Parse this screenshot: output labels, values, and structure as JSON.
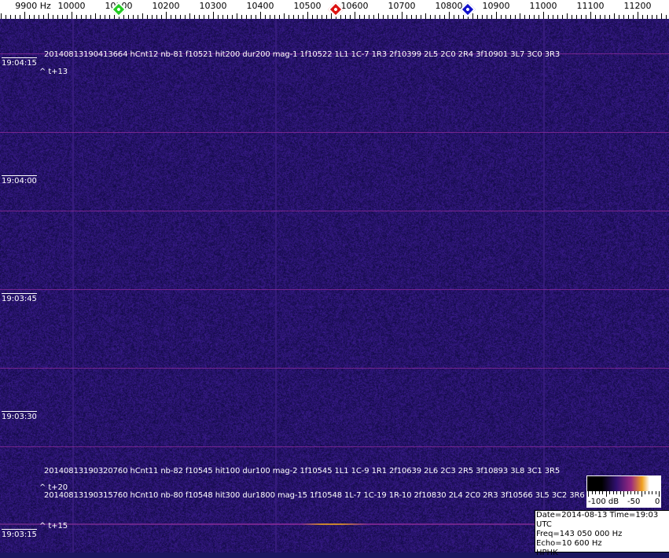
{
  "frequency_axis": {
    "unit_label": "9900 Hz",
    "labels": [
      "10000",
      "10100",
      "10200",
      "10300",
      "10400",
      "10500",
      "10600",
      "10700",
      "10800",
      "10900",
      "11000",
      "11100",
      "11200"
    ],
    "markers": [
      {
        "name": "green",
        "color": "#22cc22",
        "freq": 10100
      },
      {
        "name": "red",
        "color": "#dd1111",
        "freq": 10560
      },
      {
        "name": "blue",
        "color": "#1111cc",
        "freq": 10840
      }
    ]
  },
  "time_labels": [
    "19:04:15",
    "19:04:00",
    "19:03:45",
    "19:03:30",
    "19:03:15"
  ],
  "detections": [
    {
      "text": "20140813190413664 hCnt12 nb-81 f10521 hit200 dur200 mag-1 1f10522 1L1 1C-7 1R3 2f10399 2L5 2C0 2R4 3f10901 3L7 3C0 3R3",
      "tag": "^ t+13"
    },
    {
      "text": "20140813190320760 hCnt11 nb-82 f10545 hit100 dur100 mag-2 1f10545 1L1 1C-9 1R1 2f10639 2L6 2C3 2R5 3f10893 3L8 3C1 3R5",
      "tag": "^ t+20"
    },
    {
      "text": "20140813190315760 hCnt10 nb-80 f10548 hit300 dur1800 mag-15 1f10548 1L-7 1C-19 1R-10 2f10830 2L4 2C0 2R3 3f10566 3L5 3C2 3R6",
      "tag": "^ t+15"
    }
  ],
  "colorbar": {
    "labels": [
      "-100 dB",
      "-50",
      "0"
    ]
  },
  "info": {
    "date_time": "Date=2014-08-13 Time=19:03 UTC",
    "freq": "Freq=143 050 000 Hz",
    "echo": "Echo=10 600 Hz",
    "station": "HPHK"
  },
  "colors": {
    "background": "#1c1660",
    "grid": "#8a2a9a",
    "echo": "#f0a020"
  }
}
